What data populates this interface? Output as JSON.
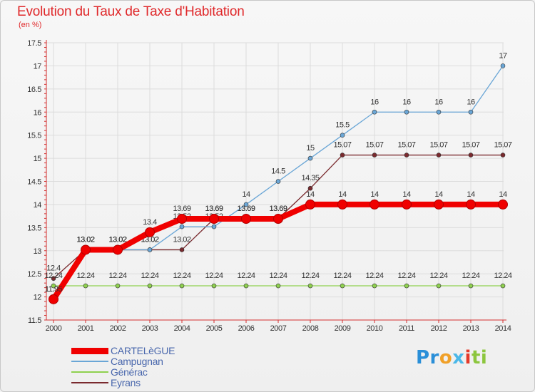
{
  "colors": {
    "title": "#e0292b",
    "axis": "#d32f2f",
    "grid": "#dcdcdc"
  },
  "chart_data": {
    "type": "line",
    "title": "Evolution du Taux de Taxe d'Habitation",
    "subtitle": "(en %)",
    "xlabel": "",
    "ylabel": "",
    "categories": [
      2000,
      2001,
      2002,
      2003,
      2004,
      2005,
      2006,
      2007,
      2008,
      2009,
      2010,
      2011,
      2012,
      2013,
      2014
    ],
    "ylim": [
      11.5,
      17.5
    ],
    "yticks": [
      11.5,
      12,
      12.5,
      13,
      13.5,
      14,
      14.5,
      15,
      15.5,
      16,
      16.5,
      17,
      17.5
    ],
    "legend_position": "bottom-left",
    "series": [
      {
        "name": "Eyrans",
        "color": "#7a2a2e",
        "values": [
          12.4,
          13.02,
          13.02,
          13.02,
          13.02,
          13.69,
          13.69,
          13.69,
          14.35,
          15.07,
          15.07,
          15.07,
          15.07,
          15.07,
          15.07
        ],
        "labels": [
          "12.4",
          "13.02",
          "13.02",
          "13.02",
          "13.02",
          "13.69",
          "13.69",
          "13.69",
          "14.35",
          "15.07",
          "15.07",
          "15.07",
          "15.07",
          "15.07",
          "15.07"
        ]
      },
      {
        "name": "Générac",
        "color": "#8fd14f",
        "values": [
          12.24,
          12.24,
          12.24,
          12.24,
          12.24,
          12.24,
          12.24,
          12.24,
          12.24,
          12.24,
          12.24,
          12.24,
          12.24,
          12.24,
          12.24
        ],
        "labels": [
          "12.24",
          "12.24",
          "12.24",
          "12.24",
          "12.24",
          "12.24",
          "12.24",
          "12.24",
          "12.24",
          "12.24",
          "12.24",
          "12.24",
          "12.24",
          "12.24",
          "12.24"
        ]
      },
      {
        "name": "Campugnan",
        "color": "#6aa6d6",
        "values": [
          11.95,
          13.02,
          13.02,
          13.02,
          13.52,
          13.52,
          14,
          14.5,
          15,
          15.5,
          16,
          16,
          16,
          16,
          17
        ],
        "labels": [
          "11.95",
          "13.02",
          "13.02",
          "13.02",
          "13.52",
          "13.52",
          "14",
          "14.5",
          "15",
          "15.5",
          "16",
          "16",
          "16",
          "16",
          "17"
        ]
      },
      {
        "name": "CARTELèGUE",
        "color": "#f00000",
        "values": [
          11.95,
          13.02,
          13.02,
          13.4,
          13.69,
          13.69,
          13.69,
          13.69,
          14,
          14,
          14,
          14,
          14,
          14,
          14
        ],
        "labels": [
          "11.95",
          "13.02",
          "13.02",
          "13.4",
          "13.69",
          "13.69",
          "13.69",
          "13.69",
          "14",
          "14",
          "14",
          "14",
          "14",
          "14",
          "14"
        ]
      }
    ]
  },
  "legend": {
    "items": [
      {
        "name": "CARTELèGUE",
        "color": "#f00000"
      },
      {
        "name": "Campugnan",
        "color": "#6aa6d6"
      },
      {
        "name": "Générac",
        "color": "#8fd14f"
      },
      {
        "name": "Eyrans",
        "color": "#7a2a2e"
      }
    ]
  },
  "logo": {
    "parts": [
      "Pr",
      "o",
      "x",
      "i",
      "ti"
    ]
  }
}
